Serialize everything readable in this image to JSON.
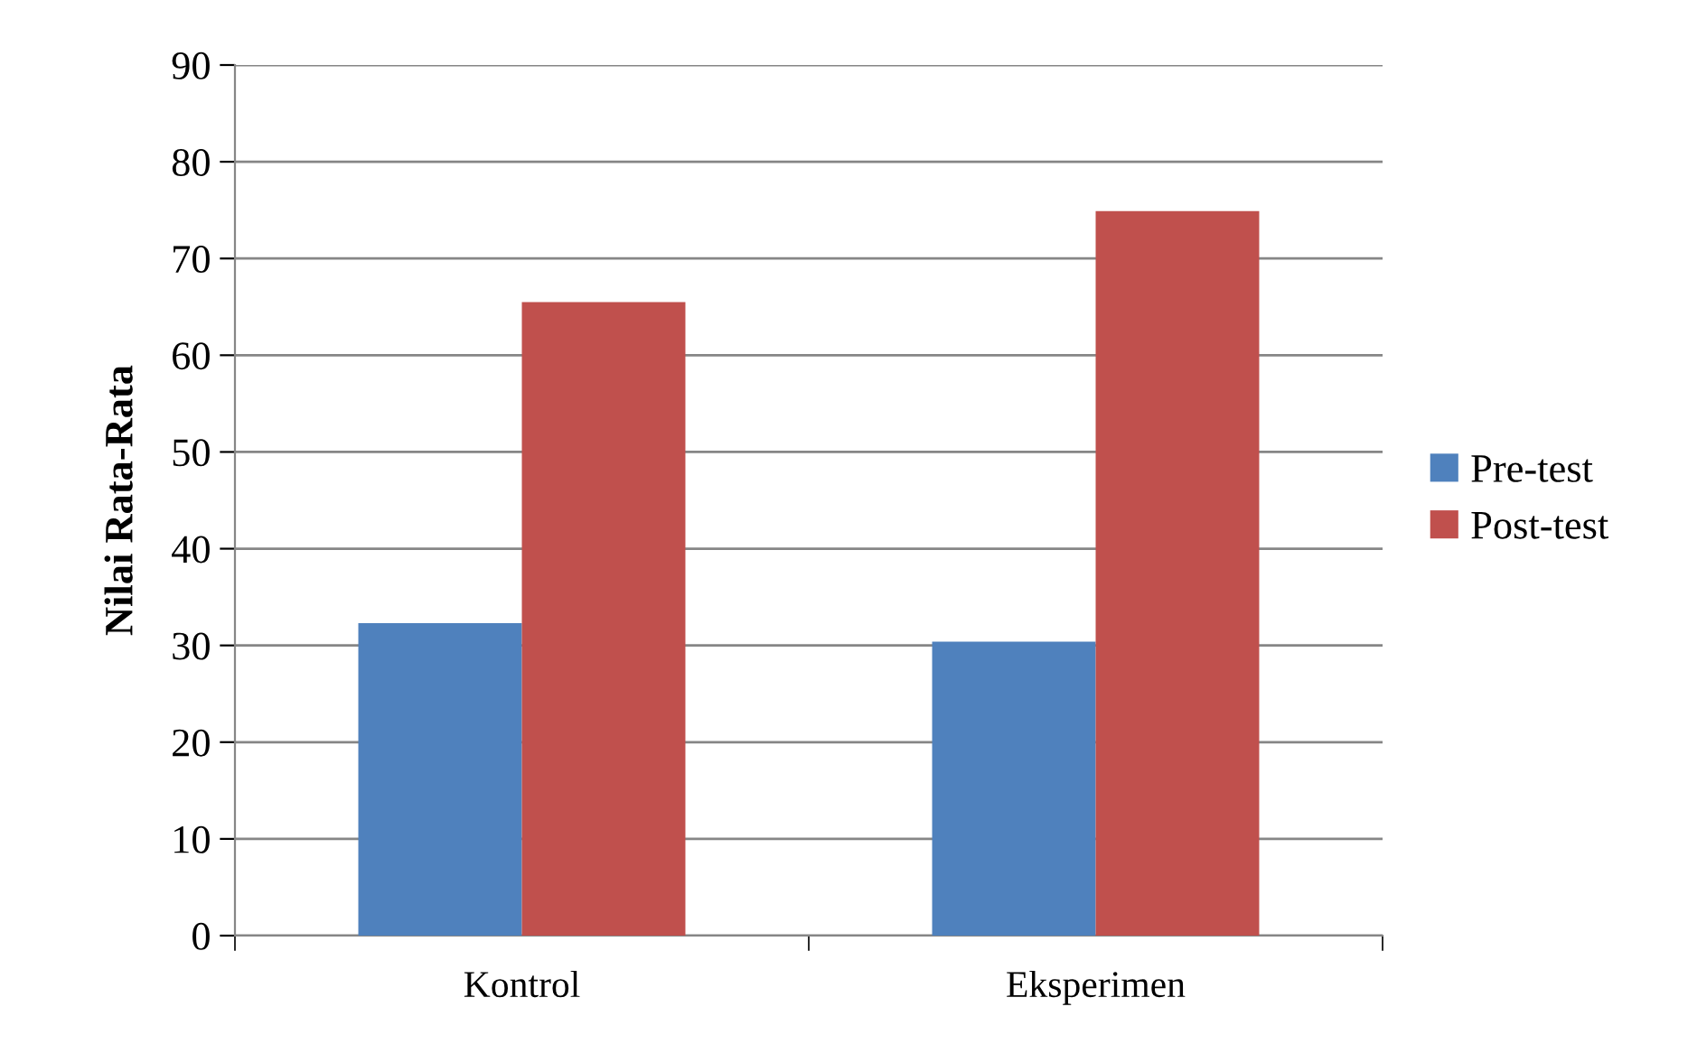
{
  "chart_data": {
    "type": "bar",
    "ylabel": "Nilai Rata-Rata",
    "categories": [
      "Kontrol",
      "Eksperimen"
    ],
    "series": [
      {
        "name": "Pre-test",
        "color": "#4f81bd",
        "values": [
          32.3,
          30.4
        ]
      },
      {
        "name": "Post-test",
        "color": "#c0504d",
        "values": [
          65.5,
          74.9
        ]
      }
    ],
    "ylim": [
      0,
      90
    ],
    "yticks": [
      0,
      10,
      20,
      30,
      40,
      50,
      60,
      70,
      80,
      90
    ],
    "grid": "y",
    "legend": "right"
  }
}
